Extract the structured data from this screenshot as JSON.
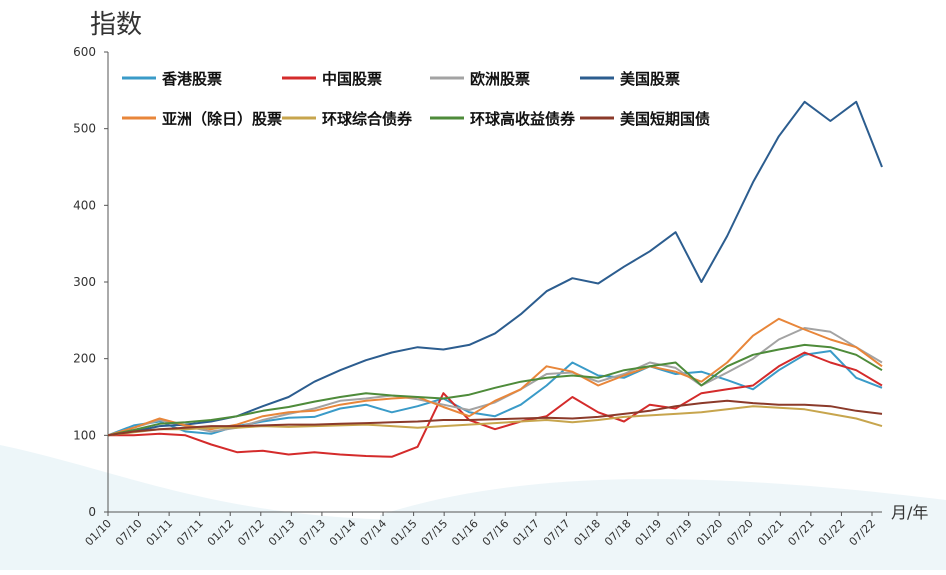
{
  "chart_data": {
    "type": "line",
    "ylabel": "指数",
    "xlabel": "月/年",
    "ylim": [
      0,
      600
    ],
    "yticks": [
      "0",
      "100",
      "200",
      "300",
      "400",
      "500",
      "600"
    ],
    "x_ticks": [
      "01/10",
      "07/10",
      "01/11",
      "07/11",
      "01/12",
      "07/12",
      "01/13",
      "07/13",
      "01/14",
      "07/14",
      "01/15",
      "07/15",
      "01/16",
      "07/16",
      "01/17",
      "07/17",
      "01/18",
      "07/18",
      "01/19",
      "07/19",
      "01/20",
      "07/20",
      "01/21",
      "07/21",
      "01/22",
      "07/22"
    ],
    "grid": false,
    "legend_position": "top",
    "series": [
      {
        "name": "香港股票",
        "color": "#3a9bc8",
        "values": [
          100,
          113,
          118,
          105,
          102,
          112,
          118,
          123,
          124,
          135,
          140,
          130,
          138,
          148,
          130,
          125,
          140,
          165,
          195,
          178,
          175,
          190,
          180,
          183,
          172,
          160,
          185,
          205,
          210,
          175,
          162
        ]
      },
      {
        "name": "中国股票",
        "color": "#d42b2b",
        "values": [
          100,
          100,
          102,
          100,
          88,
          78,
          80,
          75,
          78,
          75,
          73,
          72,
          85,
          155,
          120,
          108,
          118,
          125,
          150,
          130,
          118,
          140,
          135,
          155,
          160,
          165,
          190,
          208,
          195,
          185,
          165
        ]
      },
      {
        "name": "欧洲股票",
        "color": "#a3a3a3",
        "values": [
          100,
          110,
          120,
          112,
          105,
          110,
          120,
          128,
          135,
          145,
          148,
          152,
          147,
          140,
          133,
          143,
          160,
          180,
          182,
          170,
          180,
          195,
          188,
          165,
          182,
          200,
          225,
          240,
          235,
          215,
          195
        ]
      },
      {
        "name": "美国股票",
        "color": "#2c5d8f",
        "values": [
          100,
          105,
          112,
          114,
          118,
          125,
          138,
          150,
          170,
          185,
          198,
          208,
          215,
          212,
          218,
          233,
          258,
          288,
          305,
          298,
          320,
          340,
          365,
          300,
          360,
          430,
          490,
          535,
          510,
          535,
          450
        ]
      },
      {
        "name": "亚洲（除日）股票",
        "color": "#e8863a",
        "values": [
          100,
          110,
          122,
          113,
          108,
          114,
          125,
          130,
          132,
          140,
          145,
          148,
          150,
          137,
          125,
          145,
          160,
          190,
          183,
          165,
          178,
          190,
          183,
          170,
          195,
          230,
          252,
          238,
          225,
          215,
          190
        ]
      },
      {
        "name": "环球综合债券",
        "color": "#c7a54d",
        "values": [
          100,
          104,
          108,
          108,
          110,
          110,
          112,
          111,
          112,
          113,
          114,
          112,
          110,
          112,
          114,
          116,
          118,
          120,
          117,
          120,
          124,
          126,
          128,
          130,
          134,
          138,
          136,
          134,
          128,
          122,
          112
        ]
      },
      {
        "name": "环球高收益债券",
        "color": "#4e8b3a",
        "values": [
          100,
          107,
          115,
          117,
          120,
          125,
          132,
          137,
          144,
          150,
          155,
          152,
          150,
          148,
          153,
          162,
          170,
          175,
          178,
          175,
          185,
          190,
          195,
          165,
          190,
          205,
          212,
          218,
          215,
          205,
          185
        ]
      },
      {
        "name": "美国短期国债",
        "color": "#8b3a2a",
        "values": [
          100,
          105,
          108,
          110,
          112,
          112,
          113,
          114,
          114,
          115,
          116,
          117,
          118,
          120,
          120,
          121,
          122,
          123,
          122,
          124,
          128,
          132,
          138,
          142,
          145,
          142,
          140,
          140,
          138,
          132,
          128
        ]
      }
    ]
  }
}
